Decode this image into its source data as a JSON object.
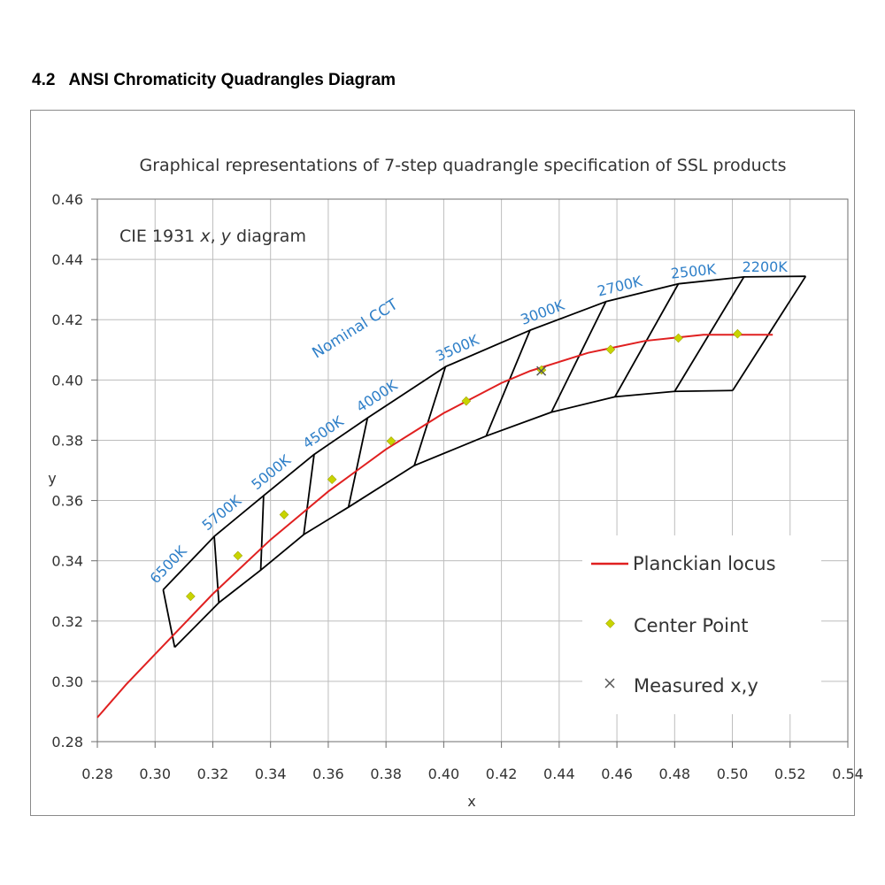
{
  "heading": "4.2   ANSI Chromaticity Quadrangles Diagram",
  "chart_data": {
    "type": "scatter",
    "title": "Graphical  representations of 7-step quadrangle specification of SSL products",
    "subtitle_parts": [
      "CIE 1931 ",
      "x",
      ", ",
      "y",
      " diagram"
    ],
    "xlabel": "x",
    "ylabel": "y",
    "xlim": [
      0.28,
      0.54
    ],
    "ylim": [
      0.28,
      0.46
    ],
    "x_ticks": [
      "0.28",
      "0.30",
      "0.32",
      "0.34",
      "0.36",
      "0.38",
      "0.40",
      "0.42",
      "0.44",
      "0.46",
      "0.48",
      "0.50",
      "0.52",
      "0.54"
    ],
    "y_ticks": [
      "0.28",
      "0.30",
      "0.32",
      "0.34",
      "0.36",
      "0.38",
      "0.40",
      "0.42",
      "0.44",
      "0.46"
    ],
    "grid": true,
    "legend_position": "bottom-right",
    "colors": {
      "locus": "#e02020",
      "center": "#c8d400",
      "measured": "#555555",
      "quad": "#000000",
      "cct_label": "#2e7fc8",
      "grid": "#bdbdbd"
    },
    "series": [
      {
        "name": "Planckian locus",
        "kind": "line",
        "x": [
          0.28,
          0.29,
          0.3,
          0.31,
          0.32,
          0.33,
          0.34,
          0.35,
          0.36,
          0.37,
          0.38,
          0.39,
          0.4,
          0.41,
          0.42,
          0.43,
          0.44,
          0.45,
          0.46,
          0.47,
          0.48,
          0.49,
          0.5,
          0.51,
          0.514
        ],
        "y": [
          0.288,
          0.299,
          0.309,
          0.319,
          0.329,
          0.338,
          0.347,
          0.355,
          0.363,
          0.37,
          0.377,
          0.383,
          0.389,
          0.394,
          0.399,
          0.403,
          0.406,
          0.409,
          0.411,
          0.413,
          0.414,
          0.415,
          0.415,
          0.415,
          0.415
        ]
      },
      {
        "name": "Center Point",
        "kind": "marker",
        "x": [
          0.3123,
          0.3287,
          0.3447,
          0.3613,
          0.3818,
          0.4078,
          0.4339,
          0.4578,
          0.4813,
          0.5018
        ],
        "y": [
          0.3282,
          0.3417,
          0.3553,
          0.367,
          0.3797,
          0.393,
          0.4033,
          0.4101,
          0.4139,
          0.4153
        ]
      },
      {
        "name": "Measured x,y",
        "kind": "cross",
        "x": [
          0.4338
        ],
        "y": [
          0.403
        ]
      }
    ],
    "quadrangles": {
      "upper_x": [
        0.3028,
        0.3205,
        0.3376,
        0.3551,
        0.3736,
        0.4006,
        0.4299,
        0.4562,
        0.4813,
        0.504,
        0.5254
      ],
      "upper_y": [
        0.3304,
        0.3481,
        0.3616,
        0.3753,
        0.3874,
        0.4044,
        0.4165,
        0.426,
        0.4319,
        0.4342,
        0.4344
      ],
      "lower_x": [
        0.3068,
        0.3221,
        0.3366,
        0.3515,
        0.367,
        0.3898,
        0.4147,
        0.4373,
        0.4593,
        0.48,
        0.5001
      ],
      "lower_y": [
        0.3113,
        0.3261,
        0.3369,
        0.3487,
        0.3578,
        0.3716,
        0.3814,
        0.3893,
        0.3944,
        0.3962,
        0.3965
      ]
    },
    "annotations": {
      "nominal_cct": "Nominal CCT",
      "cct_labels": [
        "6500K",
        "5700K",
        "5000K",
        "4500K",
        "4000K",
        "3500K",
        "3000K",
        "2700K",
        "2500K",
        "2200K"
      ]
    },
    "legend": [
      "Planckian locus",
      "Center Point",
      "Measured x,y"
    ]
  }
}
